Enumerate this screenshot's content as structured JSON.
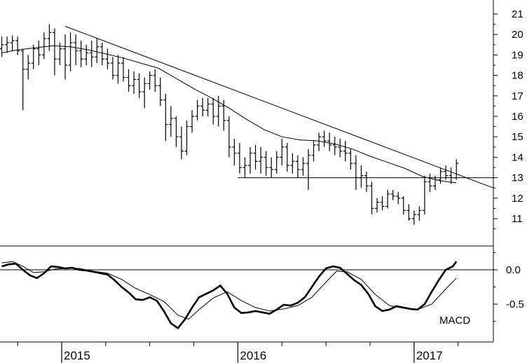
{
  "chart_data": [
    {
      "type": "ohlc",
      "title": "",
      "ylim": [
        10,
        21.5
      ],
      "y_ticks": [
        11,
        12,
        13,
        14,
        15,
        16,
        17,
        18,
        19,
        20,
        21
      ],
      "x_ticks": [
        {
          "label": "2015",
          "x": 2015.0
        },
        {
          "label": "2016",
          "x": 2016.0
        },
        {
          "label": "2017",
          "x": 2017.0
        }
      ],
      "xlim": [
        2014.65,
        2017.45
      ],
      "bars": [
        [
          2014.66,
          19.3,
          19.9,
          18.9,
          19.5
        ],
        [
          2014.69,
          19.5,
          19.9,
          19.1,
          19.6
        ],
        [
          2014.72,
          19.6,
          19.95,
          19.2,
          19.7
        ],
        [
          2014.75,
          19.7,
          19.9,
          19.0,
          19.2
        ],
        [
          2014.78,
          19.2,
          19.3,
          16.3,
          18.3
        ],
        [
          2014.81,
          18.3,
          19.0,
          17.8,
          18.6
        ],
        [
          2014.84,
          18.6,
          19.5,
          18.3,
          19.3
        ],
        [
          2014.87,
          19.3,
          19.7,
          18.5,
          19.0
        ],
        [
          2014.9,
          19.0,
          20.1,
          18.8,
          19.8
        ],
        [
          2014.93,
          19.8,
          20.5,
          19.2,
          20.1
        ],
        [
          2014.96,
          20.1,
          20.3,
          18.0,
          18.8
        ],
        [
          2014.99,
          18.8,
          19.6,
          18.5,
          19.3
        ],
        [
          2015.02,
          19.3,
          20.0,
          17.8,
          18.5
        ],
        [
          2015.05,
          18.5,
          20.1,
          18.2,
          19.6
        ],
        [
          2015.08,
          19.6,
          20.0,
          18.5,
          19.2
        ],
        [
          2015.11,
          19.2,
          19.7,
          18.4,
          18.8
        ],
        [
          2015.14,
          18.8,
          19.5,
          18.5,
          19.1
        ],
        [
          2015.17,
          19.1,
          19.7,
          18.4,
          18.9
        ],
        [
          2015.2,
          18.9,
          19.8,
          18.6,
          19.4
        ],
        [
          2015.23,
          19.4,
          19.6,
          18.5,
          18.8
        ],
        [
          2015.26,
          18.8,
          19.3,
          18.3,
          18.6
        ],
        [
          2015.29,
          18.6,
          18.9,
          17.8,
          18.0
        ],
        [
          2015.32,
          18.0,
          19.0,
          17.6,
          18.6
        ],
        [
          2015.35,
          18.6,
          18.9,
          17.7,
          17.9
        ],
        [
          2015.38,
          17.9,
          18.3,
          17.2,
          17.5
        ],
        [
          2015.41,
          17.5,
          18.2,
          17.1,
          17.8
        ],
        [
          2015.44,
          17.8,
          18.1,
          16.9,
          17.2
        ],
        [
          2015.47,
          17.2,
          17.9,
          16.4,
          17.6
        ],
        [
          2015.5,
          17.6,
          18.2,
          17.3,
          18.0
        ],
        [
          2015.53,
          18.0,
          18.3,
          17.2,
          17.5
        ],
        [
          2015.56,
          17.5,
          17.9,
          16.5,
          16.8
        ],
        [
          2015.59,
          16.8,
          17.1,
          14.8,
          15.6
        ],
        [
          2015.62,
          15.6,
          16.5,
          15.0,
          15.9
        ],
        [
          2015.65,
          15.9,
          16.0,
          14.5,
          15.0
        ],
        [
          2015.68,
          15.0,
          15.5,
          13.9,
          14.3
        ],
        [
          2015.71,
          14.3,
          15.8,
          14.1,
          15.5
        ],
        [
          2015.74,
          15.5,
          16.3,
          15.2,
          16.0
        ],
        [
          2015.77,
          16.0,
          16.8,
          15.8,
          16.5
        ],
        [
          2015.8,
          16.5,
          16.9,
          16.0,
          16.3
        ],
        [
          2015.83,
          16.3,
          16.9,
          16.0,
          16.6
        ],
        [
          2015.86,
          16.6,
          16.9,
          15.6,
          16.0
        ],
        [
          2015.89,
          16.0,
          17.0,
          15.5,
          16.5
        ],
        [
          2015.92,
          16.5,
          16.8,
          15.3,
          15.8
        ],
        [
          2015.95,
          15.8,
          16.0,
          14.0,
          14.5
        ],
        [
          2015.98,
          14.5,
          14.9,
          13.6,
          14.2
        ],
        [
          2016.01,
          14.2,
          14.7,
          13.2,
          13.5
        ],
        [
          2016.04,
          13.5,
          14.0,
          13.0,
          13.6
        ],
        [
          2016.07,
          13.6,
          14.5,
          13.2,
          14.2
        ],
        [
          2016.1,
          14.2,
          14.6,
          13.4,
          13.8
        ],
        [
          2016.13,
          13.8,
          14.5,
          13.2,
          14.0
        ],
        [
          2016.16,
          14.0,
          14.3,
          13.1,
          13.5
        ],
        [
          2016.19,
          13.5,
          14.0,
          13.0,
          13.4
        ],
        [
          2016.22,
          13.4,
          14.3,
          13.2,
          14.0
        ],
        [
          2016.25,
          14.0,
          14.9,
          13.6,
          14.5
        ],
        [
          2016.28,
          14.5,
          14.7,
          13.3,
          13.6
        ],
        [
          2016.31,
          13.6,
          14.2,
          13.2,
          13.8
        ],
        [
          2016.34,
          13.8,
          14.1,
          13.0,
          13.4
        ],
        [
          2016.37,
          13.4,
          14.0,
          13.1,
          13.7
        ],
        [
          2016.4,
          13.7,
          14.4,
          12.4,
          14.1
        ],
        [
          2016.43,
          14.1,
          14.8,
          13.8,
          14.6
        ],
        [
          2016.46,
          14.6,
          15.2,
          14.3,
          15.0
        ],
        [
          2016.49,
          15.0,
          15.3,
          14.5,
          14.8
        ],
        [
          2016.52,
          14.8,
          15.2,
          14.3,
          14.6
        ],
        [
          2016.55,
          14.6,
          15.0,
          14.1,
          14.5
        ],
        [
          2016.58,
          14.5,
          14.9,
          14.0,
          14.3
        ],
        [
          2016.61,
          14.3,
          14.8,
          13.8,
          14.2
        ],
        [
          2016.64,
          14.2,
          14.4,
          13.4,
          13.7
        ],
        [
          2016.67,
          13.7,
          14.1,
          12.4,
          13.0
        ],
        [
          2016.7,
          13.0,
          13.6,
          12.5,
          13.1
        ],
        [
          2016.73,
          13.1,
          13.3,
          12.3,
          12.6
        ],
        [
          2016.76,
          12.6,
          12.8,
          11.2,
          11.5
        ],
        [
          2016.79,
          11.5,
          12.0,
          11.3,
          11.8
        ],
        [
          2016.82,
          11.8,
          12.1,
          11.4,
          11.6
        ],
        [
          2016.85,
          11.6,
          12.4,
          11.5,
          12.2
        ],
        [
          2016.88,
          12.2,
          12.4,
          11.9,
          12.1
        ],
        [
          2016.91,
          12.1,
          12.3,
          11.7,
          12.0
        ],
        [
          2016.94,
          12.0,
          12.1,
          11.2,
          11.4
        ],
        [
          2016.97,
          11.4,
          11.7,
          10.9,
          11.0
        ],
        [
          2017.0,
          11.0,
          11.4,
          10.7,
          11.2
        ],
        [
          2017.03,
          11.2,
          11.6,
          10.9,
          11.4
        ],
        [
          2017.06,
          11.4,
          13.1,
          11.2,
          12.8
        ],
        [
          2017.09,
          12.8,
          13.2,
          12.3,
          12.6
        ],
        [
          2017.12,
          12.6,
          13.1,
          12.4,
          12.9
        ],
        [
          2017.15,
          12.9,
          13.5,
          12.7,
          13.3
        ],
        [
          2017.18,
          13.3,
          13.6,
          12.9,
          13.1
        ],
        [
          2017.21,
          13.1,
          13.5,
          12.7,
          13.0
        ],
        [
          2017.24,
          13.0,
          13.9,
          12.9,
          13.7
        ]
      ],
      "moving_average": [
        [
          2014.66,
          19.1
        ],
        [
          2014.75,
          19.25
        ],
        [
          2014.85,
          19.35
        ],
        [
          2014.95,
          19.45
        ],
        [
          2015.05,
          19.4
        ],
        [
          2015.15,
          19.25
        ],
        [
          2015.25,
          19.05
        ],
        [
          2015.35,
          18.85
        ],
        [
          2015.45,
          18.6
        ],
        [
          2015.55,
          18.35
        ],
        [
          2015.65,
          17.85
        ],
        [
          2015.75,
          17.35
        ],
        [
          2015.85,
          16.9
        ],
        [
          2015.95,
          16.4
        ],
        [
          2016.05,
          15.85
        ],
        [
          2016.15,
          15.35
        ],
        [
          2016.25,
          15.0
        ],
        [
          2016.35,
          14.85
        ],
        [
          2016.45,
          14.8
        ],
        [
          2016.55,
          14.65
        ],
        [
          2016.65,
          14.4
        ],
        [
          2016.75,
          14.05
        ],
        [
          2016.85,
          13.75
        ],
        [
          2016.95,
          13.45
        ],
        [
          2017.05,
          13.05
        ],
        [
          2017.15,
          12.85
        ],
        [
          2017.24,
          12.75
        ]
      ],
      "trendlines": [
        {
          "points": [
            [
              2015.02,
              20.4
            ],
            [
              2017.45,
              12.5
            ]
          ]
        },
        {
          "points": [
            [
              2016.0,
              13.0
            ],
            [
              2017.45,
              13.0
            ]
          ]
        }
      ]
    },
    {
      "type": "line",
      "label": "MACD",
      "ylim": [
        -0.95,
        0.4
      ],
      "y_ticks": [
        {
          "label": "0.0",
          "value": 0.0
        },
        {
          "label": "-0.5",
          "value": -0.5
        }
      ],
      "zero_line": 0.0,
      "macd": [
        [
          2014.66,
          0.05
        ],
        [
          2014.7,
          0.08
        ],
        [
          2014.74,
          0.09
        ],
        [
          2014.78,
          0.0
        ],
        [
          2014.82,
          -0.08
        ],
        [
          2014.86,
          -0.12
        ],
        [
          2014.9,
          -0.05
        ],
        [
          2014.94,
          0.05
        ],
        [
          2014.98,
          0.04
        ],
        [
          2015.02,
          0.02
        ],
        [
          2015.06,
          0.03
        ],
        [
          2015.1,
          0.0
        ],
        [
          2015.14,
          -0.01
        ],
        [
          2015.18,
          -0.03
        ],
        [
          2015.22,
          -0.05
        ],
        [
          2015.26,
          -0.07
        ],
        [
          2015.3,
          -0.15
        ],
        [
          2015.34,
          -0.25
        ],
        [
          2015.38,
          -0.33
        ],
        [
          2015.42,
          -0.43
        ],
        [
          2015.46,
          -0.44
        ],
        [
          2015.5,
          -0.4
        ],
        [
          2015.54,
          -0.45
        ],
        [
          2015.58,
          -0.6
        ],
        [
          2015.62,
          -0.78
        ],
        [
          2015.66,
          -0.85
        ],
        [
          2015.7,
          -0.72
        ],
        [
          2015.74,
          -0.55
        ],
        [
          2015.78,
          -0.4
        ],
        [
          2015.82,
          -0.35
        ],
        [
          2015.86,
          -0.3
        ],
        [
          2015.9,
          -0.23
        ],
        [
          2015.94,
          -0.35
        ],
        [
          2015.98,
          -0.55
        ],
        [
          2016.02,
          -0.63
        ],
        [
          2016.06,
          -0.62
        ],
        [
          2016.1,
          -0.6
        ],
        [
          2016.14,
          -0.62
        ],
        [
          2016.18,
          -0.64
        ],
        [
          2016.22,
          -0.58
        ],
        [
          2016.26,
          -0.51
        ],
        [
          2016.3,
          -0.52
        ],
        [
          2016.34,
          -0.48
        ],
        [
          2016.38,
          -0.4
        ],
        [
          2016.42,
          -0.25
        ],
        [
          2016.46,
          -0.1
        ],
        [
          2016.5,
          0.02
        ],
        [
          2016.54,
          0.05
        ],
        [
          2016.58,
          0.03
        ],
        [
          2016.62,
          -0.06
        ],
        [
          2016.66,
          -0.15
        ],
        [
          2016.7,
          -0.22
        ],
        [
          2016.74,
          -0.35
        ],
        [
          2016.78,
          -0.53
        ],
        [
          2016.82,
          -0.6
        ],
        [
          2016.86,
          -0.58
        ],
        [
          2016.9,
          -0.53
        ],
        [
          2016.94,
          -0.55
        ],
        [
          2016.98,
          -0.57
        ],
        [
          2017.02,
          -0.58
        ],
        [
          2017.06,
          -0.5
        ],
        [
          2017.1,
          -0.32
        ],
        [
          2017.14,
          -0.15
        ],
        [
          2017.18,
          0.0
        ],
        [
          2017.22,
          0.05
        ],
        [
          2017.24,
          0.12
        ]
      ],
      "signal": [
        [
          2014.66,
          0.1
        ],
        [
          2014.72,
          0.12
        ],
        [
          2014.78,
          0.05
        ],
        [
          2014.84,
          -0.04
        ],
        [
          2014.9,
          -0.03
        ],
        [
          2014.96,
          0.01
        ],
        [
          2015.02,
          0.02
        ],
        [
          2015.1,
          0.02
        ],
        [
          2015.18,
          -0.02
        ],
        [
          2015.26,
          -0.05
        ],
        [
          2015.34,
          -0.14
        ],
        [
          2015.42,
          -0.27
        ],
        [
          2015.5,
          -0.36
        ],
        [
          2015.58,
          -0.46
        ],
        [
          2015.66,
          -0.66
        ],
        [
          2015.72,
          -0.72
        ],
        [
          2015.78,
          -0.58
        ],
        [
          2015.86,
          -0.41
        ],
        [
          2015.94,
          -0.32
        ],
        [
          2016.02,
          -0.45
        ],
        [
          2016.1,
          -0.55
        ],
        [
          2016.18,
          -0.6
        ],
        [
          2016.26,
          -0.57
        ],
        [
          2016.34,
          -0.52
        ],
        [
          2016.42,
          -0.4
        ],
        [
          2016.5,
          -0.18
        ],
        [
          2016.56,
          -0.02
        ],
        [
          2016.62,
          -0.03
        ],
        [
          2016.7,
          -0.14
        ],
        [
          2016.78,
          -0.36
        ],
        [
          2016.86,
          -0.52
        ],
        [
          2016.94,
          -0.56
        ],
        [
          2017.02,
          -0.58
        ],
        [
          2017.1,
          -0.5
        ],
        [
          2017.18,
          -0.28
        ],
        [
          2017.24,
          -0.12
        ]
      ]
    }
  ]
}
